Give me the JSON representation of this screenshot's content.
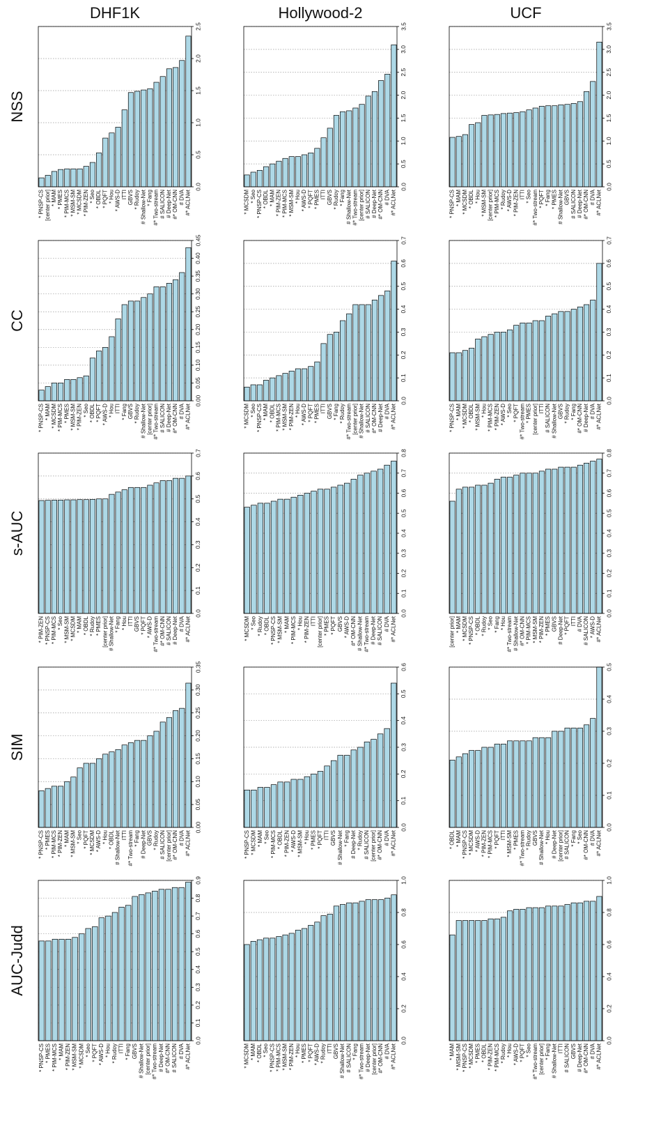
{
  "columns": [
    "DHF1K",
    "Hollywood-2",
    "UCF"
  ],
  "rows": [
    "NSS",
    "CC",
    "s-AUC",
    "SIM",
    "AUC-Judd"
  ],
  "chart_data": [
    {
      "type": "bar",
      "color": "#add8e6",
      "grid": true,
      "ylim": [
        0,
        2.5
      ],
      "yticks": [
        {
          "value": 0,
          "label": "0.0"
        },
        0.5,
        {
          "value": 1,
          "label": "1.0"
        },
        1.5,
        {
          "value": 2,
          "label": "2.0"
        },
        2.5
      ],
      "categories": [
        "* PNSP-CS",
        "[center prior]",
        "* MAM",
        "* PMES",
        "* PIM-MCS",
        "* MSM-SM",
        "* MCSDM",
        "* PIM-ZEN",
        "* Seo",
        "* OBDL",
        "* PQFT",
        "* Hou",
        "* AWS-D",
        "ITTI",
        "GBVS",
        "* Rudoy",
        "# Shallow-Net",
        "* Fang",
        "#* Two-stream",
        "# SALICON",
        "# Deep-Net",
        "#* OM-CNN",
        "# DVA",
        "#* ACLNet"
      ],
      "values": [
        0.14,
        0.18,
        0.24,
        0.27,
        0.28,
        0.28,
        0.28,
        0.32,
        0.38,
        0.53,
        0.76,
        0.84,
        0.93,
        1.2,
        1.47,
        1.49,
        1.51,
        1.53,
        1.63,
        1.72,
        1.84,
        1.86,
        1.97,
        2.35
      ]
    },
    {
      "type": "bar",
      "color": "#add8e6",
      "grid": true,
      "ylim": [
        0,
        3.5
      ],
      "yticks": [
        {
          "value": 0,
          "label": "0.0"
        },
        0.5,
        {
          "value": 1,
          "label": "1.0"
        },
        1.5,
        {
          "value": 2,
          "label": "2.0"
        },
        2.5,
        {
          "value": 3,
          "label": "3.0"
        },
        3.5
      ],
      "categories": [
        "* MCSDM",
        "* Seo",
        "* PNSP-CS",
        "* OBDL",
        "* MAM",
        "* PIM-ZEN",
        "* PIM-MCS",
        "* MSM-SM",
        "* Hou",
        "* AWS-D",
        "* PQFT",
        "* PMES",
        "ITTI",
        "GBVS",
        "* Rudoy",
        "* Fang",
        "# Shallow-Net",
        "#* Two-stream",
        "[center prior]",
        "# SALICON",
        "# Deep-Net",
        "#* OM-CNN",
        "# DVA",
        "#* ACLNet"
      ],
      "values": [
        0.26,
        0.32,
        0.36,
        0.44,
        0.5,
        0.56,
        0.62,
        0.66,
        0.66,
        0.7,
        0.74,
        0.84,
        1.07,
        1.28,
        1.56,
        1.64,
        1.66,
        1.72,
        1.8,
        1.98,
        2.08,
        2.32,
        2.46,
        3.1
      ]
    },
    {
      "type": "bar",
      "color": "#add8e6",
      "grid": true,
      "ylim": [
        0,
        3.5
      ],
      "yticks": [
        {
          "value": 0,
          "label": "0.0"
        },
        0.5,
        {
          "value": 1,
          "label": "1.0"
        },
        1.5,
        {
          "value": 2,
          "label": "2.0"
        },
        2.5,
        {
          "value": 3,
          "label": "3.0"
        },
        3.5
      ],
      "categories": [
        "* PNSP-CS",
        "* MAM",
        "* MCSDM",
        "* OBDL",
        "* Hou",
        "* MSM-SM",
        "[center prior]",
        "* PIM-MCS",
        "* Rudoy",
        "* AWS-D",
        "* PIM-ZEN",
        "ITTI",
        "* Seo",
        "#* Two-stream",
        "* PQFT",
        "* Fang",
        "* PMES",
        "# Shallow-Net",
        "GBVS",
        "# SALICON",
        "# Deep-Net",
        "#* OM-CNN",
        "# DVA",
        "#* ACLNet"
      ],
      "values": [
        1.08,
        1.1,
        1.14,
        1.36,
        1.4,
        1.56,
        1.57,
        1.58,
        1.6,
        1.61,
        1.62,
        1.64,
        1.68,
        1.72,
        1.76,
        1.77,
        1.77,
        1.79,
        1.8,
        1.82,
        1.86,
        2.08,
        2.3,
        3.16
      ]
    },
    {
      "type": "bar",
      "color": "#add8e6",
      "grid": true,
      "ylim": [
        0,
        0.45
      ],
      "yticks": [
        {
          "value": 0,
          "label": "0.00"
        },
        0.05,
        {
          "value": 0.1,
          "label": "0.10"
        },
        0.15,
        {
          "value": 0.2,
          "label": "0.20"
        },
        0.25,
        {
          "value": 0.3,
          "label": "0.30"
        },
        0.35,
        {
          "value": 0.4,
          "label": "0.40"
        },
        0.45
      ],
      "categories": [
        "* PNSP-CS",
        "* MAM",
        "* MCSDM",
        "* PIM-MCS",
        "* PMES",
        "* MSM-SM",
        "* PIM-ZEN",
        "* Seo",
        "* OBDL",
        "* PQFT",
        "* AWS-D",
        "* Hou",
        "ITTI",
        "* Fang",
        "GBVS",
        "* Rudoy",
        "# Shallow-Net",
        "[center prior]",
        "#* Two-stream",
        "# SALICON",
        "# Deep-Net",
        "#* OM-CNN",
        "# DVA",
        "#* ACLNet"
      ],
      "values": [
        0.03,
        0.04,
        0.05,
        0.05,
        0.06,
        0.06,
        0.065,
        0.07,
        0.12,
        0.14,
        0.15,
        0.18,
        0.23,
        0.27,
        0.28,
        0.28,
        0.29,
        0.3,
        0.32,
        0.32,
        0.33,
        0.34,
        0.36,
        0.43
      ]
    },
    {
      "type": "bar",
      "color": "#add8e6",
      "grid": true,
      "ylim": [
        0,
        0.7
      ],
      "yticks": [
        {
          "value": 0,
          "label": "0.0"
        },
        0.1,
        0.2,
        0.3,
        0.4,
        0.5,
        0.6,
        0.7
      ],
      "categories": [
        "* MCSDM",
        "* Seo",
        "* PNSP-CS",
        "* MAM",
        "* OBDL",
        "* PIM-MCS",
        "* MSM-SM",
        "* PIM-ZEN",
        "* Hou",
        "* AWS-D",
        "* PQFT",
        "* PMES",
        "ITTI",
        "GBVS",
        "* Fang",
        "* Rudoy",
        "#* Two-stream",
        "[center prior]",
        "# Shallow-Net",
        "# SALICON",
        "#* OM-CNN",
        "# Deep-Net",
        "# DVA",
        "#* ACLNet"
      ],
      "values": [
        0.06,
        0.07,
        0.07,
        0.09,
        0.1,
        0.11,
        0.12,
        0.13,
        0.14,
        0.14,
        0.15,
        0.17,
        0.25,
        0.29,
        0.3,
        0.35,
        0.38,
        0.42,
        0.42,
        0.42,
        0.44,
        0.46,
        0.48,
        0.61
      ]
    },
    {
      "type": "bar",
      "color": "#add8e6",
      "grid": true,
      "ylim": [
        0,
        0.7
      ],
      "yticks": [
        {
          "value": 0,
          "label": "0.0"
        },
        0.1,
        0.2,
        0.3,
        0.4,
        0.5,
        0.6,
        0.7
      ],
      "categories": [
        "* PNSP-CS",
        "* MAM",
        "* MCSDM",
        "* OBDL",
        "* MSM-SM",
        "* Hou",
        "* PIM-MCS",
        "* PIM-ZEN",
        "* AWS-D",
        "* Seo",
        "* PQFT",
        "#* Two-stream",
        "* PMES",
        "[center prior]",
        "ITTI",
        "# SALICON",
        "# Shallow-Net",
        "GBVS",
        "* Rudoy",
        "* Fang",
        "#* OM-CNN",
        "# Deep-Net",
        "# DVA",
        "#* ACLNet"
      ],
      "values": [
        0.21,
        0.21,
        0.22,
        0.23,
        0.27,
        0.28,
        0.29,
        0.3,
        0.3,
        0.31,
        0.33,
        0.34,
        0.34,
        0.35,
        0.35,
        0.37,
        0.38,
        0.39,
        0.39,
        0.4,
        0.41,
        0.42,
        0.44,
        0.6
      ]
    },
    {
      "type": "bar",
      "color": "#add8e6",
      "grid": true,
      "ylim": [
        0,
        0.7
      ],
      "yticks": [
        {
          "value": 0,
          "label": "0.0"
        },
        0.1,
        0.2,
        0.3,
        0.4,
        0.5,
        0.6,
        0.7
      ],
      "categories": [
        "* PIM-ZEN",
        "* PNSP-CS",
        "* PIM-MCS",
        "* Seo",
        "* MSM-SM",
        "* MCSDM",
        "* MAM",
        "* OBDL",
        "* Rudoy",
        "* PMES",
        "[center prior]",
        "# Shallow-Net",
        "* Fang",
        "* Hou",
        "ITTI",
        "GBVS",
        "* PQFT",
        "* AWS-D",
        "#* Two-stream",
        "#* OM-CNN",
        "# SALICON",
        "# Deep-Net",
        "# DVA",
        "#* ACLNet"
      ],
      "values": [
        0.493,
        0.494,
        0.495,
        0.495,
        0.496,
        0.496,
        0.497,
        0.497,
        0.498,
        0.5,
        0.5,
        0.52,
        0.53,
        0.54,
        0.55,
        0.55,
        0.55,
        0.56,
        0.57,
        0.58,
        0.58,
        0.59,
        0.59,
        0.6
      ]
    },
    {
      "type": "bar",
      "color": "#add8e6",
      "grid": true,
      "ylim": [
        0,
        0.8
      ],
      "yticks": [
        {
          "value": 0,
          "label": "0.0"
        },
        0.1,
        0.2,
        0.3,
        0.4,
        0.5,
        0.6,
        0.7,
        0.8
      ],
      "categories": [
        "* MCSDM",
        "* Seo",
        "* Rudoy",
        "* OBDL",
        "* PNSP-CS",
        "* MSM-SM",
        "* MAM",
        "* PIM-MCS",
        "* Hou",
        "* PIM-ZEN",
        "ITTI",
        "[center prior]",
        "* PMES",
        "* PQFT",
        "GBVS",
        "* AWS-D",
        "#* OM-CNN",
        "# Shallow-Net",
        "#* Two-stream",
        "# Deep-Net",
        "# SALICON",
        "# DVA",
        "#* ACLNet"
      ],
      "values": [
        0.53,
        0.54,
        0.55,
        0.55,
        0.56,
        0.57,
        0.57,
        0.58,
        0.59,
        0.6,
        0.61,
        0.62,
        0.62,
        0.63,
        0.64,
        0.65,
        0.67,
        0.69,
        0.7,
        0.71,
        0.72,
        0.74,
        0.76
      ]
    },
    {
      "type": "bar",
      "color": "#add8e6",
      "grid": true,
      "ylim": [
        0,
        0.8
      ],
      "yticks": [
        {
          "value": 0,
          "label": "0.0"
        },
        0.1,
        0.2,
        0.3,
        0.4,
        0.5,
        0.6,
        0.7,
        0.8
      ],
      "categories": [
        "[center prior]",
        "* MAM",
        "* MCSDM",
        "* PNSP-CS",
        "* OBDL",
        "* Rudoy",
        "* Seo",
        "* Fang",
        "* Hou",
        "#* Two-stream",
        "# Shallow-Net",
        "#* OM-CNN",
        "* PIM-MCS",
        "* MSM-SM",
        "* PIM-ZEN",
        "* PMES",
        "GBVS",
        "# Deep-Net",
        "* PQFT",
        "ITTI",
        "# DVA",
        "# SALICON",
        "* AWS-D",
        "#* ACLNet"
      ],
      "values": [
        0.56,
        0.62,
        0.63,
        0.63,
        0.64,
        0.64,
        0.65,
        0.67,
        0.68,
        0.68,
        0.69,
        0.7,
        0.7,
        0.7,
        0.71,
        0.72,
        0.72,
        0.73,
        0.73,
        0.73,
        0.74,
        0.75,
        0.76,
        0.77
      ]
    },
    {
      "type": "bar",
      "color": "#add8e6",
      "grid": true,
      "ylim": [
        0,
        0.35
      ],
      "yticks": [
        {
          "value": 0,
          "label": "0.00"
        },
        0.05,
        {
          "value": 0.1,
          "label": "0.10"
        },
        0.15,
        {
          "value": 0.2,
          "label": "0.20"
        },
        0.25,
        {
          "value": 0.3,
          "label": "0.30"
        },
        0.35
      ],
      "categories": [
        "* PNSP-CS",
        "* PMES",
        "* PIM-MCS",
        "* PIM-ZEN",
        "* MAM",
        "* MSM-SM",
        "* Seo",
        "* PQFT",
        "* MCSDM",
        "* AWS-D",
        "* Hou",
        "* OBDL",
        "# Shallow-Net",
        "ITTI",
        "#* Two-stream",
        "* Fang",
        "# Deep-Net",
        "GBVS",
        "* Rudoy",
        "# SALICON",
        "[center prior]",
        "#* OM-CNN",
        "# DVA",
        "#* ACLNet"
      ],
      "values": [
        0.08,
        0.085,
        0.09,
        0.09,
        0.1,
        0.11,
        0.13,
        0.14,
        0.14,
        0.15,
        0.16,
        0.165,
        0.17,
        0.18,
        0.185,
        0.19,
        0.19,
        0.2,
        0.21,
        0.23,
        0.24,
        0.255,
        0.26,
        0.315
      ]
    },
    {
      "type": "bar",
      "color": "#add8e6",
      "grid": true,
      "ylim": [
        0,
        0.6
      ],
      "yticks": [
        {
          "value": 0,
          "label": "0.0"
        },
        0.1,
        0.2,
        0.3,
        0.4,
        0.5,
        0.6
      ],
      "categories": [
        "* PNSP-CS",
        "* MCSDM",
        "* MAM",
        "* Seo",
        "* PIM-MCS",
        "* OBDL",
        "* PIM-ZEN",
        "* AWS-D",
        "* MSM-SM",
        "* Hou",
        "* PMES",
        "* PQFT",
        "ITTI",
        "GBVS",
        "# Shallow-Net",
        "* Fang",
        "# Deep-Net",
        "* Rudoy",
        "# SALICON",
        "[center prior]",
        "#* OM-CNN",
        "# DVA",
        "#* ACLNet"
      ],
      "values": [
        0.14,
        0.14,
        0.15,
        0.15,
        0.16,
        0.17,
        0.17,
        0.18,
        0.18,
        0.19,
        0.2,
        0.21,
        0.23,
        0.25,
        0.27,
        0.27,
        0.29,
        0.3,
        0.32,
        0.33,
        0.35,
        0.37,
        0.54
      ]
    },
    {
      "type": "bar",
      "color": "#add8e6",
      "grid": true,
      "ylim": [
        0,
        0.5
      ],
      "yticks": [
        {
          "value": 0,
          "label": "0.0"
        },
        0.1,
        0.2,
        0.3,
        0.4,
        0.5
      ],
      "categories": [
        "* OBDL",
        "* MAM",
        "* PNSP-CS",
        "* MCSDM",
        "* AWS-D",
        "* PIM-ZEN",
        "* PIM-MCS",
        "* PQFT",
        "ITTI",
        "* MSM-SM",
        "* PMES",
        "#* Two-stream",
        "* Rudoy",
        "GBVS",
        "# Shallow-Net",
        "* Hou",
        "# Deep-Net",
        "[center prior]",
        "# SALICON",
        "* Fang",
        "* Seo",
        "#* OM-CNN",
        "# DVA",
        "#* ACLNet"
      ],
      "values": [
        0.21,
        0.22,
        0.23,
        0.24,
        0.24,
        0.25,
        0.25,
        0.26,
        0.26,
        0.27,
        0.27,
        0.27,
        0.27,
        0.28,
        0.28,
        0.28,
        0.3,
        0.3,
        0.31,
        0.31,
        0.31,
        0.32,
        0.34,
        0.5
      ]
    },
    {
      "type": "bar",
      "color": "#add8e6",
      "grid": true,
      "ylim": [
        0,
        0.9
      ],
      "yticks": [
        {
          "value": 0,
          "label": "0.0"
        },
        0.1,
        0.2,
        0.3,
        0.4,
        0.5,
        0.6,
        0.7,
        0.8,
        0.9
      ],
      "categories": [
        "* PNSP-CS",
        "* PMES",
        "* PIM-MCS",
        "* MAM",
        "* PIM-ZEN",
        "* MSM-SM",
        "* MCSDM",
        "* Seo",
        "* PQFT",
        "* AWS-D",
        "* Hou",
        "* Rudoy",
        "ITTI",
        "* Fang",
        "GBVS",
        "# Shallow-Net",
        "[center prior]",
        "#* Two-stream",
        "# Deep-Net",
        "#* OM-CNN",
        "# SALICON",
        "# DVA",
        "#* ACLNet"
      ],
      "values": [
        0.56,
        0.56,
        0.57,
        0.57,
        0.57,
        0.58,
        0.6,
        0.63,
        0.64,
        0.69,
        0.7,
        0.72,
        0.75,
        0.76,
        0.81,
        0.82,
        0.83,
        0.84,
        0.85,
        0.85,
        0.86,
        0.86,
        0.89
      ]
    },
    {
      "type": "bar",
      "color": "#add8e6",
      "grid": true,
      "ylim": [
        0,
        1
      ],
      "yticks": [
        {
          "value": 0,
          "label": "0.0"
        },
        0.2,
        0.4,
        0.6,
        0.8,
        {
          "value": 1,
          "label": "1.0"
        }
      ],
      "categories": [
        "* MCSDM",
        "* MAM",
        "* OBDL",
        "* Seo",
        "* PNSP-CS",
        "* PIM-MCS",
        "* MSM-SM",
        "* PIM-ZEN",
        "* Hou",
        "* PMES",
        "* PQFT",
        "* AWS-D",
        "* Rudoy",
        "ITTI",
        "GBVS",
        "# Shallow-Net",
        "# SALICON",
        "* Fang",
        "#* Two-stream",
        "# Deep-Net",
        "[center prior]",
        "#* OM-CNN",
        "# DVA",
        "#* ACLNet"
      ],
      "values": [
        0.6,
        0.62,
        0.63,
        0.64,
        0.64,
        0.65,
        0.66,
        0.67,
        0.69,
        0.7,
        0.72,
        0.74,
        0.78,
        0.79,
        0.84,
        0.85,
        0.86,
        0.86,
        0.87,
        0.88,
        0.88,
        0.88,
        0.89,
        0.91
      ]
    },
    {
      "type": "bar",
      "color": "#add8e6",
      "grid": true,
      "ylim": [
        0,
        1
      ],
      "yticks": [
        {
          "value": 0,
          "label": "0.0"
        },
        0.2,
        0.4,
        0.6,
        0.8,
        {
          "value": 1,
          "label": "1.0"
        }
      ],
      "categories": [
        "* MAM",
        "* MSM-SM",
        "* PNSP-CS",
        "* MCSDM",
        "* PMES",
        "* OBDL",
        "* PIM-ZEN",
        "* PIM-MCS",
        "* Rudoy",
        "* Hou",
        "* AWS-D",
        "* PQFT",
        "* Seo",
        "#* Two-stream",
        "[center prior]",
        "* Fang",
        "# Shallow-Net",
        "ITTI",
        "# SALICON",
        "GBVS",
        "# Deep-Net",
        "#* OM-CNN",
        "# DVA",
        "#* ACLNet"
      ],
      "values": [
        0.66,
        0.75,
        0.75,
        0.75,
        0.75,
        0.75,
        0.76,
        0.76,
        0.77,
        0.81,
        0.82,
        0.82,
        0.83,
        0.83,
        0.83,
        0.84,
        0.84,
        0.84,
        0.85,
        0.86,
        0.86,
        0.87,
        0.87,
        0.9
      ]
    }
  ]
}
